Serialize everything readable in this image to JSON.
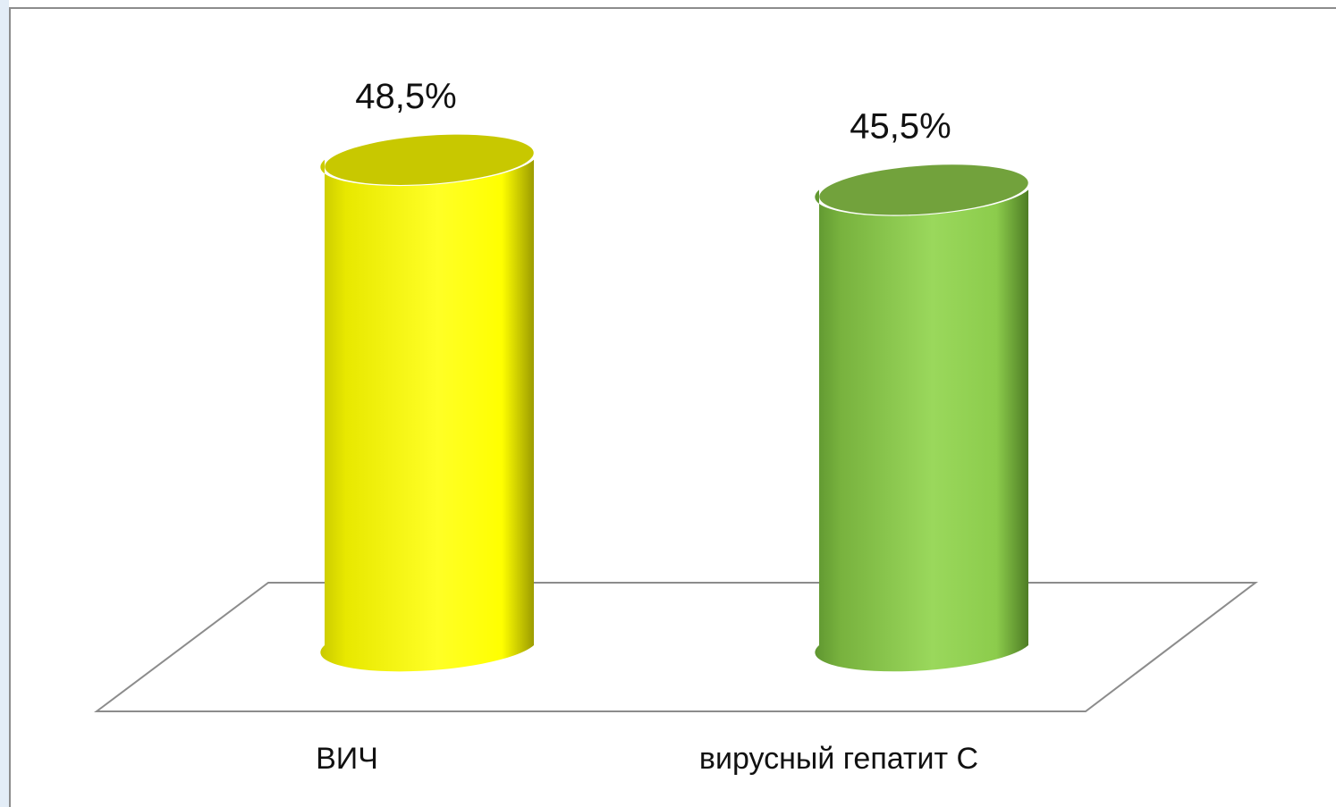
{
  "chart_data": {
    "type": "bar",
    "style": "3d-cylinder",
    "categories": [
      "ВИЧ",
      "вирусный гепатит С"
    ],
    "values": [
      48.5,
      45.5
    ],
    "data_labels": [
      "48,5%",
      "45,5%"
    ],
    "colors": [
      "#ffff00",
      "#92d050"
    ],
    "title": "",
    "xlabel": "",
    "ylabel": "",
    "ylim": [
      0,
      50
    ],
    "grid": false,
    "legend": "none"
  }
}
